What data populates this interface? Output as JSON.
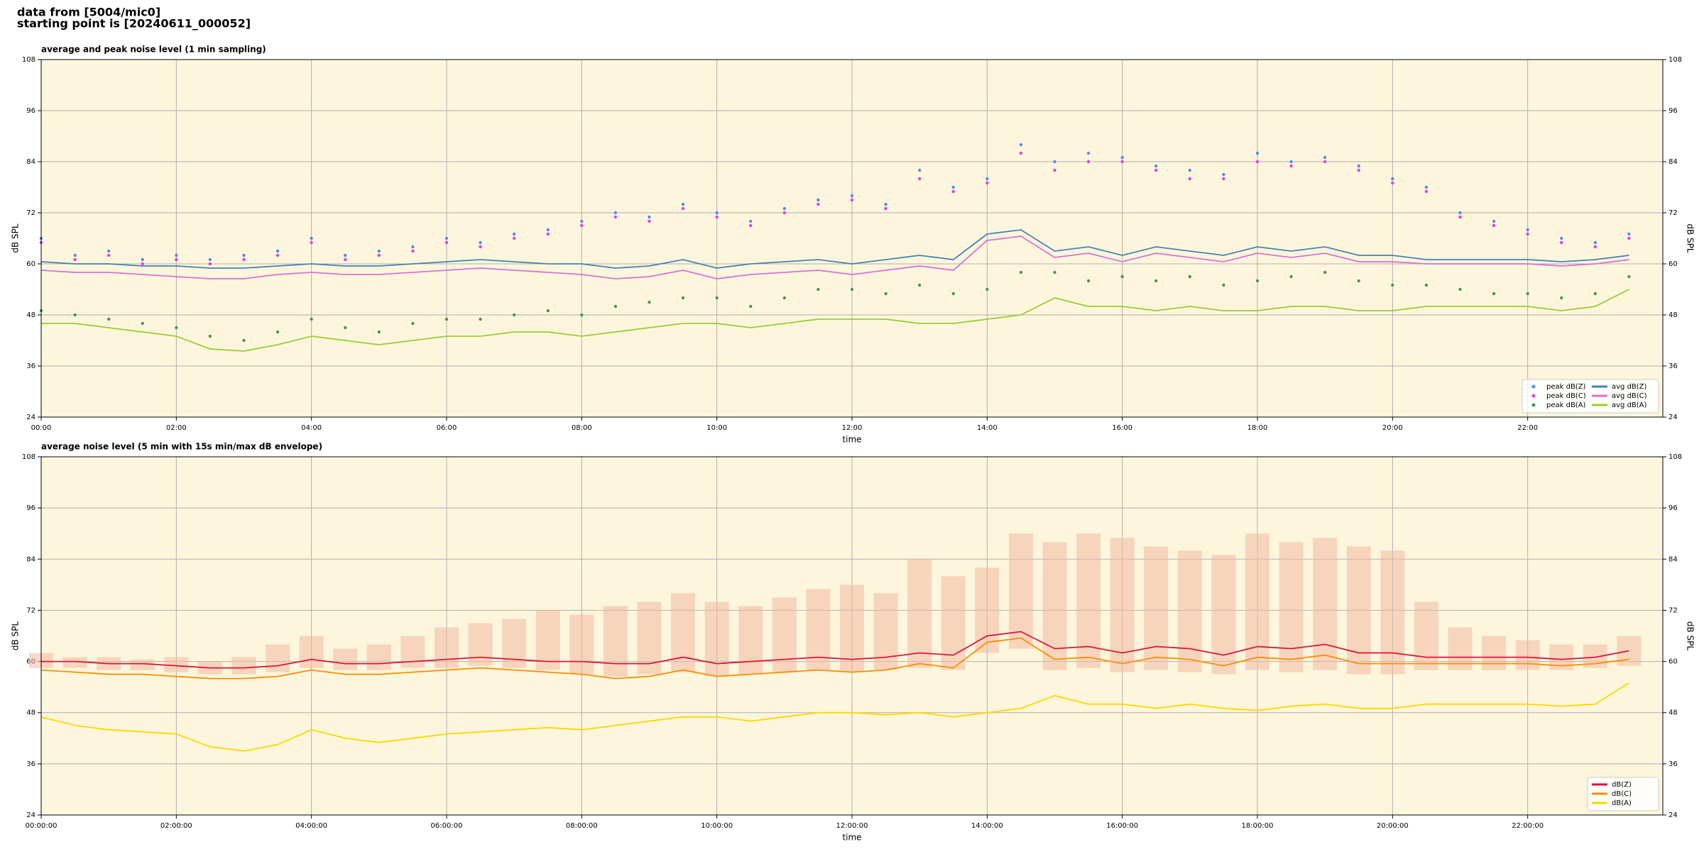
{
  "header": {
    "lines": [
      "data from [5004/mic0]",
      "starting point is [20240611_000052]"
    ]
  },
  "chart_data": [
    {
      "type": "line",
      "title": "average and peak noise level (1 min sampling)",
      "xlabel": "time",
      "ylabel": "dB SPL",
      "background": "#fdf6dc",
      "grid": true,
      "legend": "lower right",
      "legend_columns": 2,
      "xlim": [
        0,
        24
      ],
      "ylim": [
        24,
        108
      ],
      "yticks": [
        24,
        36,
        48,
        60,
        72,
        84,
        96,
        108
      ],
      "xticks": [
        {
          "value": 0,
          "label": "00:00"
        },
        {
          "value": 2,
          "label": "02:00"
        },
        {
          "value": 4,
          "label": "04:00"
        },
        {
          "value": 6,
          "label": "06:00"
        },
        {
          "value": 8,
          "label": "08:00"
        },
        {
          "value": 10,
          "label": "10:00"
        },
        {
          "value": 12,
          "label": "12:00"
        },
        {
          "value": 14,
          "label": "14:00"
        },
        {
          "value": 16,
          "label": "16:00"
        },
        {
          "value": 18,
          "label": "18:00"
        },
        {
          "value": 20,
          "label": "20:00"
        },
        {
          "value": 22,
          "label": "22:00"
        }
      ],
      "x": [
        0,
        0.5,
        1,
        1.5,
        2,
        2.5,
        3,
        3.5,
        4,
        4.5,
        5,
        5.5,
        6,
        6.5,
        7,
        7.5,
        8,
        8.5,
        9,
        9.5,
        10,
        10.5,
        11,
        11.5,
        12,
        12.5,
        13,
        13.5,
        14,
        14.5,
        15,
        15.5,
        16,
        16.5,
        17,
        17.5,
        18,
        18.5,
        19,
        19.5,
        20,
        20.5,
        21,
        21.5,
        22,
        22.5,
        23,
        23.5
      ],
      "series": [
        {
          "name": "peak dB(Z)",
          "color": "#4f8fe6",
          "marker": "dot",
          "values": [
            66,
            62,
            63,
            61,
            62,
            61,
            62,
            63,
            66,
            62,
            63,
            64,
            66,
            65,
            67,
            68,
            70,
            72,
            71,
            74,
            72,
            70,
            73,
            75,
            76,
            74,
            82,
            78,
            80,
            88,
            84,
            86,
            85,
            83,
            82,
            81,
            86,
            84,
            85,
            83,
            80,
            78,
            72,
            70,
            68,
            66,
            65,
            67
          ]
        },
        {
          "name": "peak dB(C)",
          "color": "#e83ae8",
          "marker": "dot",
          "values": [
            65,
            61,
            62,
            60,
            61,
            60,
            61,
            62,
            65,
            61,
            62,
            63,
            65,
            64,
            66,
            67,
            69,
            71,
            70,
            73,
            71,
            69,
            72,
            74,
            75,
            73,
            80,
            77,
            79,
            86,
            82,
            84,
            84,
            82,
            80,
            80,
            84,
            83,
            84,
            82,
            79,
            77,
            71,
            69,
            67,
            65,
            64,
            66
          ]
        },
        {
          "name": "peak dB(A)",
          "color": "#3d9a5a",
          "marker": "dot",
          "values": [
            49,
            48,
            47,
            46,
            45,
            43,
            42,
            44,
            47,
            45,
            44,
            46,
            47,
            47,
            48,
            49,
            48,
            50,
            51,
            52,
            52,
            50,
            52,
            54,
            54,
            53,
            55,
            53,
            54,
            58,
            58,
            56,
            57,
            56,
            57,
            55,
            56,
            57,
            58,
            56,
            55,
            55,
            54,
            53,
            53,
            52,
            53,
            57
          ]
        },
        {
          "name": "avg dB(Z)",
          "color": "#4682b4",
          "marker": "line",
          "values": [
            60.5,
            60,
            60,
            59.5,
            59.5,
            59,
            59,
            59.5,
            60,
            59.5,
            59.5,
            60,
            60.5,
            61,
            60.5,
            60,
            60,
            59,
            59.5,
            61,
            59,
            60,
            60.5,
            61,
            60,
            61,
            62,
            61,
            67,
            68,
            63,
            64,
            62,
            64,
            63,
            62,
            64,
            63,
            64,
            62,
            62,
            61,
            61,
            61,
            61,
            60.5,
            61,
            62
          ]
        },
        {
          "name": "avg dB(C)",
          "color": "#da70d6",
          "marker": "line",
          "values": [
            58.5,
            58,
            58,
            57.5,
            57,
            56.5,
            56.5,
            57.5,
            58,
            57.5,
            57.5,
            58,
            58.5,
            59,
            58.5,
            58,
            57.5,
            56.5,
            57,
            58.5,
            56.5,
            57.5,
            58,
            58.5,
            57.5,
            58.5,
            59.5,
            58.5,
            65.5,
            66.5,
            61.5,
            62.5,
            60.5,
            62.5,
            61.5,
            60.5,
            62.5,
            61.5,
            62.5,
            60.5,
            60.5,
            60,
            60,
            60,
            60,
            59.5,
            60,
            61
          ]
        },
        {
          "name": "avg dB(A)",
          "color": "#9acd32",
          "marker": "line",
          "values": [
            46,
            46,
            45,
            44,
            43,
            40,
            39.5,
            41,
            43,
            42,
            41,
            42,
            43,
            43,
            44,
            44,
            43,
            44,
            45,
            46,
            46,
            45,
            46,
            47,
            47,
            47,
            46,
            46,
            47,
            48,
            52,
            50,
            50,
            49,
            50,
            49,
            49,
            50,
            50,
            49,
            49,
            50,
            50,
            50,
            50,
            49,
            50,
            54
          ]
        }
      ]
    },
    {
      "type": "line",
      "title": "average noise level (5 min with 15s min/max dB envelope)",
      "xlabel": "time",
      "ylabel": "dB SPL",
      "background": "#fdf6dc",
      "grid": true,
      "legend": "lower right",
      "legend_columns": 1,
      "xlim": [
        0,
        24
      ],
      "ylim": [
        24,
        108
      ],
      "yticks": [
        24,
        36,
        48,
        60,
        72,
        84,
        96,
        108
      ],
      "xticks": [
        {
          "value": 0,
          "label": "00:00:00"
        },
        {
          "value": 2,
          "label": "02:00:00"
        },
        {
          "value": 4,
          "label": "04:00:00"
        },
        {
          "value": 6,
          "label": "06:00:00"
        },
        {
          "value": 8,
          "label": "08:00:00"
        },
        {
          "value": 10,
          "label": "10:00:00"
        },
        {
          "value": 12,
          "label": "12:00:00"
        },
        {
          "value": 14,
          "label": "14:00:00"
        },
        {
          "value": 16,
          "label": "16:00:00"
        },
        {
          "value": 18,
          "label": "18:00:00"
        },
        {
          "value": 20,
          "label": "20:00:00"
        },
        {
          "value": 22,
          "label": "22:00:00"
        }
      ],
      "x": [
        0,
        0.5,
        1,
        1.5,
        2,
        2.5,
        3,
        3.5,
        4,
        4.5,
        5,
        5.5,
        6,
        6.5,
        7,
        7.5,
        8,
        8.5,
        9,
        9.5,
        10,
        10.5,
        11,
        11.5,
        12,
        12.5,
        13,
        13.5,
        14,
        14.5,
        15,
        15.5,
        16,
        16.5,
        17,
        17.5,
        18,
        18.5,
        19,
        19.5,
        20,
        20.5,
        21,
        21.5,
        22,
        22.5,
        23,
        23.5
      ],
      "envelope": {
        "color": "#f2b9a2",
        "max": [
          62,
          61,
          61,
          60.5,
          61,
          60,
          61,
          64,
          66,
          63,
          64,
          66,
          68,
          69,
          70,
          72,
          71,
          73,
          74,
          76,
          74,
          73,
          75,
          77,
          78,
          76,
          84,
          80,
          82,
          90,
          88,
          90,
          89,
          87,
          86,
          85,
          90,
          88,
          89,
          87,
          86,
          74,
          68,
          66,
          65,
          64,
          64,
          66
        ],
        "min": [
          58.5,
          58.5,
          58,
          58,
          57.5,
          57,
          57,
          57.5,
          58.5,
          58,
          58,
          58.5,
          58.5,
          59,
          58.5,
          58,
          57,
          56.5,
          57,
          57.5,
          56.5,
          57,
          57.5,
          58,
          57.5,
          58,
          58.5,
          58,
          62,
          63,
          58,
          58.5,
          57.5,
          58,
          57.5,
          57,
          58,
          57.5,
          58,
          57,
          57,
          58,
          58,
          58,
          58,
          58,
          58.5,
          59
        ]
      },
      "series": [
        {
          "name": "dB(Z)",
          "color": "#dc143c",
          "marker": "line",
          "values": [
            60,
            60,
            59.5,
            59.5,
            59,
            58.5,
            58.5,
            59,
            60.5,
            59.5,
            59.5,
            60,
            60.5,
            61,
            60.5,
            60,
            60,
            59.5,
            59.5,
            61,
            59.5,
            60,
            60.5,
            61,
            60.5,
            61,
            62,
            61.5,
            66,
            67,
            63,
            63.5,
            62,
            63.5,
            63,
            61.5,
            63.5,
            63,
            64,
            62,
            62,
            61,
            61,
            61,
            61,
            60.5,
            61,
            62.5
          ]
        },
        {
          "name": "dB(C)",
          "color": "#ff8c00",
          "marker": "line",
          "values": [
            58,
            57.5,
            57,
            57,
            56.5,
            56,
            56,
            56.5,
            58,
            57,
            57,
            57.5,
            58,
            58.5,
            58,
            57.5,
            57,
            56,
            56.5,
            58,
            56.5,
            57,
            57.5,
            58,
            57.5,
            58,
            59.5,
            58.5,
            64.5,
            65.5,
            60.5,
            61,
            59.5,
            61,
            60.5,
            59,
            61,
            60.5,
            61.5,
            59.5,
            59.5,
            59.5,
            59.5,
            59.5,
            59.5,
            59,
            59.5,
            60.5
          ]
        },
        {
          "name": "dB(A)",
          "color": "#ffd700",
          "marker": "line",
          "values": [
            47,
            45,
            44,
            43.5,
            43,
            40,
            39,
            40.5,
            44,
            42,
            41,
            42,
            43,
            43.5,
            44,
            44.5,
            44,
            45,
            46,
            47,
            47,
            46,
            47,
            48,
            48,
            47.5,
            48,
            47,
            48,
            49,
            52,
            50,
            50,
            49,
            50,
            49,
            48.5,
            49.5,
            50,
            49,
            49,
            50,
            50,
            50,
            50,
            49.5,
            50,
            55
          ]
        }
      ]
    }
  ]
}
